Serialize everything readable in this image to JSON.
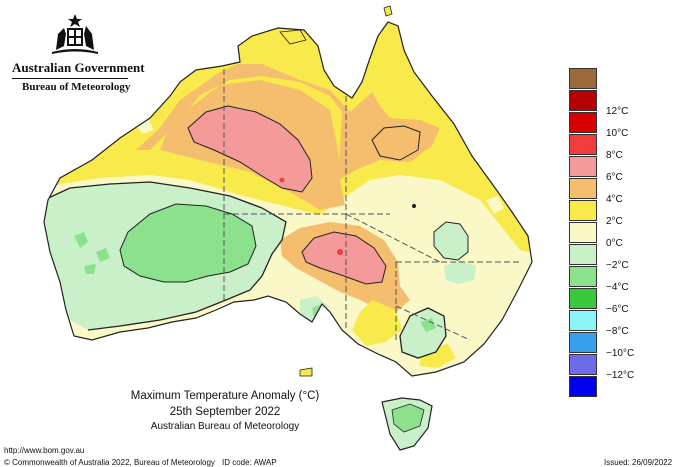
{
  "header": {
    "government": "Australian Government",
    "bureau": "Bureau of Meteorology",
    "crest_icon": "coat-of-arms-icon"
  },
  "legend": {
    "items": [
      {
        "label": "",
        "color": "#9a6a3c"
      },
      {
        "label": "12°C",
        "color": "#b40000"
      },
      {
        "label": "10°C",
        "color": "#d80000"
      },
      {
        "label": "8°C",
        "color": "#f03c3c"
      },
      {
        "label": "6°C",
        "color": "#f49a9a"
      },
      {
        "label": "4°C",
        "color": "#f5be6e"
      },
      {
        "label": "2°C",
        "color": "#f8ea4a"
      },
      {
        "label": "0°C",
        "color": "#fbf8c8"
      },
      {
        "label": "−2°C",
        "color": "#caf0ca"
      },
      {
        "label": "−4°C",
        "color": "#8ce28c"
      },
      {
        "label": "−6°C",
        "color": "#3cc83c"
      },
      {
        "label": "−8°C",
        "color": "#8cf5f5"
      },
      {
        "label": "−10°C",
        "color": "#3aa0ee"
      },
      {
        "label": "−12°C",
        "color": "#6c6ce6"
      },
      {
        "label": "",
        "color": "#0000ee"
      }
    ]
  },
  "title": {
    "line1": "Maximum Temperature Anomaly (°C)",
    "line2": "25th September 2022",
    "line3": "Australian Bureau of Meteorology"
  },
  "footer": {
    "url": "http://www.bom.gov.au",
    "copyright": "© Commonwealth of Australia 2022, Bureau of Meteorology",
    "id_code": "ID code: AWAP",
    "issued": "Issued: 26/09/2022"
  }
}
